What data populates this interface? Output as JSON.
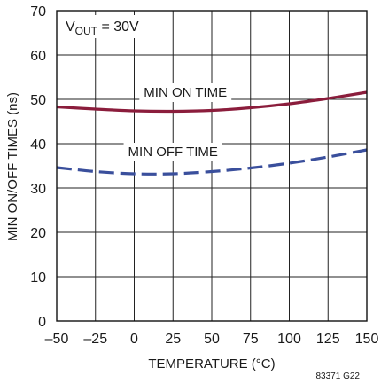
{
  "chart_data": {
    "type": "line",
    "xlabel": "TEMPERATURE (°C)",
    "ylabel": "MIN ON/OFF TIMES (ns)",
    "xlim": [
      -50,
      150
    ],
    "ylim": [
      0,
      70
    ],
    "xticks": [
      -50,
      -25,
      0,
      25,
      50,
      75,
      100,
      125,
      150
    ],
    "yticks": [
      0,
      10,
      20,
      30,
      40,
      50,
      60,
      70
    ],
    "xtick_labels": [
      "–50",
      "–25",
      "0",
      "25",
      "50",
      "75",
      "100",
      "125",
      "150"
    ],
    "ytick_labels": [
      "0",
      "10",
      "20",
      "30",
      "40",
      "50",
      "60",
      "70"
    ],
    "grid": true,
    "annotation": {
      "main": "V",
      "sub": "OUT",
      "rest": " = 30V"
    },
    "figure_id": "83371 G22",
    "series": [
      {
        "name": "MIN ON TIME",
        "color": "#8b1d3c",
        "dash": "solid",
        "x": [
          -50,
          -25,
          0,
          25,
          50,
          75,
          100,
          125,
          150
        ],
        "y": [
          48.3,
          47.8,
          47.4,
          47.3,
          47.5,
          48.1,
          49.0,
          50.2,
          51.6
        ]
      },
      {
        "name": "MIN OFF TIME",
        "color": "#3a4f9c",
        "dash": "dashed",
        "x": [
          -50,
          -25,
          0,
          25,
          50,
          75,
          100,
          125,
          150
        ],
        "y": [
          34.6,
          33.7,
          33.2,
          33.2,
          33.7,
          34.5,
          35.6,
          37.0,
          38.6
        ]
      }
    ]
  }
}
